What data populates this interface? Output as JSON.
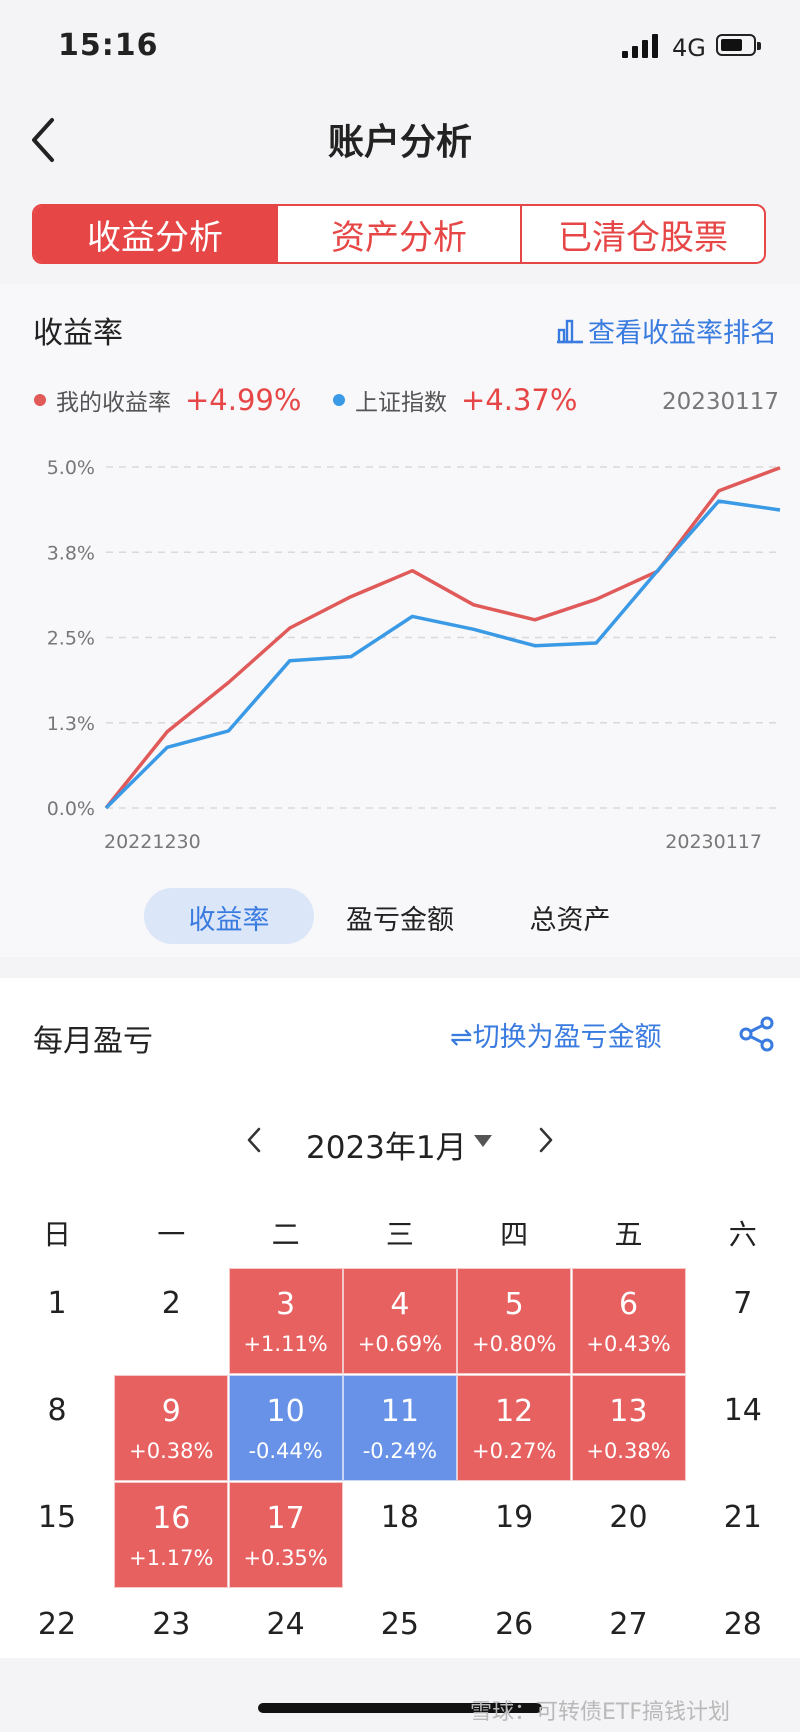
{
  "status": {
    "time": "15:16",
    "network": "4G",
    "battery_level": 0.7
  },
  "header": {
    "title": "账户分析"
  },
  "tabs": [
    {
      "label": "收益分析",
      "active": true
    },
    {
      "label": "资产分析",
      "active": false
    },
    {
      "label": "已清仓股票",
      "active": false
    }
  ],
  "returns": {
    "title": "收益率",
    "rank_link": "查看收益率排名",
    "legend": [
      {
        "name": "我的收益率",
        "value": "+4.99%",
        "color": "#e05a5a"
      },
      {
        "name": "上证指数",
        "value": "+4.37%",
        "color": "#3b9ae6"
      }
    ],
    "date": "20230117"
  },
  "chart_data": {
    "type": "line",
    "y_ticks": [
      "5.0%",
      "3.8%",
      "2.5%",
      "1.3%",
      "0.0%"
    ],
    "ylim": [
      0,
      5.0
    ],
    "x_start_label": "20221230",
    "x_end_label": "20230117",
    "grid": true,
    "series": [
      {
        "name": "我的收益率",
        "color": "#e05a5a",
        "values": [
          0,
          1.12,
          1.84,
          2.64,
          3.1,
          3.48,
          2.98,
          2.76,
          3.06,
          3.47,
          4.65,
          4.99
        ]
      },
      {
        "name": "上证指数",
        "color": "#3b9ae6",
        "values": [
          0,
          0.89,
          1.13,
          2.16,
          2.22,
          2.81,
          2.62,
          2.38,
          2.42,
          3.48,
          4.5,
          4.37
        ]
      }
    ]
  },
  "segmented": [
    {
      "label": "收益率",
      "active": true
    },
    {
      "label": "盈亏金额",
      "active": false
    },
    {
      "label": "总资产",
      "active": false
    }
  ],
  "monthly": {
    "title": "每月盈亏",
    "switch_link": "⇌切换为盈亏金额",
    "month_label": "2023年1月",
    "weekdays": [
      "日",
      "一",
      "二",
      "三",
      "四",
      "五",
      "六"
    ],
    "weeks": [
      [
        {
          "d": "1"
        },
        {
          "d": "2"
        },
        {
          "d": "3",
          "p": "+1.11%"
        },
        {
          "d": "4",
          "p": "+0.69%"
        },
        {
          "d": "5",
          "p": "+0.80%"
        },
        {
          "d": "6",
          "p": "+0.43%"
        },
        {
          "d": "7"
        }
      ],
      [
        {
          "d": "8"
        },
        {
          "d": "9",
          "p": "+0.38%"
        },
        {
          "d": "10",
          "p": "-0.44%"
        },
        {
          "d": "11",
          "p": "-0.24%"
        },
        {
          "d": "12",
          "p": "+0.27%"
        },
        {
          "d": "13",
          "p": "+0.38%"
        },
        {
          "d": "14"
        }
      ],
      [
        {
          "d": "15"
        },
        {
          "d": "16",
          "p": "+1.17%"
        },
        {
          "d": "17",
          "p": "+0.35%"
        },
        {
          "d": "18"
        },
        {
          "d": "19"
        },
        {
          "d": "20"
        },
        {
          "d": "21"
        }
      ],
      [
        {
          "d": "22"
        },
        {
          "d": "23"
        },
        {
          "d": "24"
        },
        {
          "d": "25"
        },
        {
          "d": "26"
        },
        {
          "d": "27"
        },
        {
          "d": "28"
        }
      ]
    ]
  },
  "watermark": "雪球：可转债ETF搞钱计划"
}
